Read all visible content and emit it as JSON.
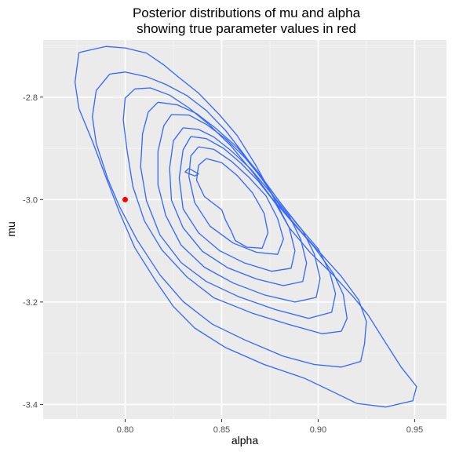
{
  "chart_data": {
    "type": "contour",
    "title": [
      "Posterior distributions of mu and alpha",
      "showing true parameter values in red"
    ],
    "xlabel": "alpha",
    "ylabel": "mu",
    "xlim": [
      0.7575,
      0.9665
    ],
    "ylim": [
      -3.4285,
      -2.6885
    ],
    "x_ticks": [
      0.8,
      0.85,
      0.9,
      0.95
    ],
    "x_tick_labels": [
      "0.80",
      "0.85",
      "0.90",
      "0.95"
    ],
    "y_ticks": [
      -3.4,
      -3.2,
      -3.0,
      -2.8
    ],
    "y_tick_labels": [
      "-3.4",
      "-3.2",
      "-3.0",
      "-2.8"
    ],
    "grid": true,
    "contour_color": "#3366FF",
    "true_point": {
      "alpha": 0.8,
      "mu": -3.0,
      "color": "#FF0000"
    },
    "contours": [
      {
        "level": 1,
        "points": [
          [
            0.776,
            -2.713
          ],
          [
            0.79,
            -2.701
          ],
          [
            0.8,
            -2.704
          ],
          [
            0.811,
            -2.714
          ],
          [
            0.82,
            -2.737
          ],
          [
            0.828,
            -2.762
          ],
          [
            0.838,
            -2.792
          ],
          [
            0.849,
            -2.835
          ],
          [
            0.858,
            -2.875
          ],
          [
            0.868,
            -2.935
          ],
          [
            0.877,
            -2.997
          ],
          [
            0.885,
            -3.055
          ],
          [
            0.896,
            -3.104
          ],
          [
            0.908,
            -3.148
          ],
          [
            0.918,
            -3.189
          ],
          [
            0.926,
            -3.226
          ],
          [
            0.934,
            -3.274
          ],
          [
            0.943,
            -3.327
          ],
          [
            0.951,
            -3.365
          ],
          [
            0.949,
            -3.393
          ],
          [
            0.935,
            -3.405
          ],
          [
            0.92,
            -3.398
          ],
          [
            0.908,
            -3.376
          ],
          [
            0.893,
            -3.349
          ],
          [
            0.872,
            -3.322
          ],
          [
            0.852,
            -3.289
          ],
          [
            0.836,
            -3.251
          ],
          [
            0.825,
            -3.209
          ],
          [
            0.816,
            -3.16
          ],
          [
            0.805,
            -3.094
          ],
          [
            0.797,
            -3.024
          ],
          [
            0.79,
            -2.956
          ],
          [
            0.783,
            -2.886
          ],
          [
            0.776,
            -2.822
          ],
          [
            0.774,
            -2.771
          ],
          [
            0.776,
            -2.713
          ]
        ]
      },
      {
        "level": 2,
        "points": [
          [
            0.792,
            -2.755
          ],
          [
            0.8,
            -2.751
          ],
          [
            0.811,
            -2.76
          ],
          [
            0.821,
            -2.775
          ],
          [
            0.832,
            -2.797
          ],
          [
            0.842,
            -2.826
          ],
          [
            0.852,
            -2.865
          ],
          [
            0.862,
            -2.914
          ],
          [
            0.872,
            -2.966
          ],
          [
            0.881,
            -3.017
          ],
          [
            0.891,
            -3.062
          ],
          [
            0.901,
            -3.104
          ],
          [
            0.912,
            -3.15
          ],
          [
            0.921,
            -3.196
          ],
          [
            0.925,
            -3.238
          ],
          [
            0.924,
            -3.282
          ],
          [
            0.922,
            -3.316
          ],
          [
            0.912,
            -3.327
          ],
          [
            0.898,
            -3.322
          ],
          [
            0.882,
            -3.306
          ],
          [
            0.862,
            -3.274
          ],
          [
            0.845,
            -3.243
          ],
          [
            0.83,
            -3.199
          ],
          [
            0.818,
            -3.147
          ],
          [
            0.806,
            -3.078
          ],
          [
            0.797,
            -3.013
          ],
          [
            0.791,
            -2.96
          ],
          [
            0.785,
            -2.89
          ],
          [
            0.783,
            -2.838
          ],
          [
            0.785,
            -2.787
          ],
          [
            0.792,
            -2.755
          ]
        ]
      },
      {
        "level": 3,
        "points": [
          [
            0.805,
            -2.784
          ],
          [
            0.813,
            -2.782
          ],
          [
            0.823,
            -2.796
          ],
          [
            0.833,
            -2.821
          ],
          [
            0.843,
            -2.852
          ],
          [
            0.855,
            -2.896
          ],
          [
            0.866,
            -2.946
          ],
          [
            0.876,
            -2.997
          ],
          [
            0.887,
            -3.046
          ],
          [
            0.898,
            -3.093
          ],
          [
            0.908,
            -3.145
          ],
          [
            0.913,
            -3.185
          ],
          [
            0.915,
            -3.232
          ],
          [
            0.912,
            -3.257
          ],
          [
            0.902,
            -3.262
          ],
          [
            0.885,
            -3.244
          ],
          [
            0.866,
            -3.222
          ],
          [
            0.846,
            -3.192
          ],
          [
            0.832,
            -3.151
          ],
          [
            0.819,
            -3.098
          ],
          [
            0.81,
            -3.042
          ],
          [
            0.804,
            -2.975
          ],
          [
            0.801,
            -2.905
          ],
          [
            0.799,
            -2.845
          ],
          [
            0.8,
            -2.802
          ],
          [
            0.805,
            -2.784
          ]
        ]
      },
      {
        "level": 4,
        "points": [
          [
            0.817,
            -2.81
          ],
          [
            0.827,
            -2.815
          ],
          [
            0.837,
            -2.832
          ],
          [
            0.847,
            -2.861
          ],
          [
            0.858,
            -2.898
          ],
          [
            0.869,
            -2.947
          ],
          [
            0.879,
            -2.999
          ],
          [
            0.889,
            -3.048
          ],
          [
            0.9,
            -3.096
          ],
          [
            0.906,
            -3.142
          ],
          [
            0.909,
            -3.184
          ],
          [
            0.907,
            -3.22
          ],
          [
            0.895,
            -3.232
          ],
          [
            0.878,
            -3.215
          ],
          [
            0.859,
            -3.19
          ],
          [
            0.842,
            -3.16
          ],
          [
            0.829,
            -3.123
          ],
          [
            0.818,
            -3.069
          ],
          [
            0.811,
            -3.002
          ],
          [
            0.808,
            -2.936
          ],
          [
            0.809,
            -2.871
          ],
          [
            0.812,
            -2.829
          ],
          [
            0.817,
            -2.81
          ]
        ]
      },
      {
        "level": 5,
        "points": [
          [
            0.824,
            -2.834
          ],
          [
            0.833,
            -2.835
          ],
          [
            0.842,
            -2.853
          ],
          [
            0.852,
            -2.881
          ],
          [
            0.862,
            -2.918
          ],
          [
            0.872,
            -2.964
          ],
          [
            0.882,
            -3.014
          ],
          [
            0.892,
            -3.061
          ],
          [
            0.898,
            -3.106
          ],
          [
            0.901,
            -3.154
          ],
          [
            0.899,
            -3.191
          ],
          [
            0.888,
            -3.2
          ],
          [
            0.872,
            -3.186
          ],
          [
            0.856,
            -3.163
          ],
          [
            0.841,
            -3.132
          ],
          [
            0.829,
            -3.089
          ],
          [
            0.821,
            -3.031
          ],
          [
            0.817,
            -2.971
          ],
          [
            0.817,
            -2.906
          ],
          [
            0.82,
            -2.856
          ],
          [
            0.824,
            -2.834
          ]
        ]
      },
      {
        "level": 6,
        "points": [
          [
            0.83,
            -2.86
          ],
          [
            0.838,
            -2.863
          ],
          [
            0.846,
            -2.878
          ],
          [
            0.855,
            -2.905
          ],
          [
            0.865,
            -2.94
          ],
          [
            0.875,
            -2.985
          ],
          [
            0.885,
            -3.032
          ],
          [
            0.891,
            -3.078
          ],
          [
            0.894,
            -3.124
          ],
          [
            0.892,
            -3.16
          ],
          [
            0.882,
            -3.168
          ],
          [
            0.868,
            -3.155
          ],
          [
            0.853,
            -3.133
          ],
          [
            0.84,
            -3.101
          ],
          [
            0.83,
            -3.055
          ],
          [
            0.824,
            -3.001
          ],
          [
            0.823,
            -2.939
          ],
          [
            0.825,
            -2.885
          ],
          [
            0.83,
            -2.86
          ]
        ]
      },
      {
        "level": 7,
        "points": [
          [
            0.834,
            -2.877
          ],
          [
            0.842,
            -2.881
          ],
          [
            0.851,
            -2.9
          ],
          [
            0.86,
            -2.929
          ],
          [
            0.869,
            -2.964
          ],
          [
            0.878,
            -3.008
          ],
          [
            0.885,
            -3.055
          ],
          [
            0.888,
            -3.1
          ],
          [
            0.886,
            -3.134
          ],
          [
            0.876,
            -3.14
          ],
          [
            0.862,
            -3.124
          ],
          [
            0.849,
            -3.1
          ],
          [
            0.838,
            -3.065
          ],
          [
            0.83,
            -3.018
          ],
          [
            0.828,
            -2.958
          ],
          [
            0.83,
            -2.903
          ],
          [
            0.834,
            -2.877
          ]
        ]
      },
      {
        "level": 8,
        "points": [
          [
            0.838,
            -2.897
          ],
          [
            0.846,
            -2.902
          ],
          [
            0.855,
            -2.925
          ],
          [
            0.864,
            -2.956
          ],
          [
            0.873,
            -2.993
          ],
          [
            0.879,
            -3.037
          ],
          [
            0.882,
            -3.077
          ],
          [
            0.879,
            -3.107
          ],
          [
            0.868,
            -3.103
          ],
          [
            0.856,
            -3.085
          ],
          [
            0.844,
            -3.052
          ],
          [
            0.836,
            -3.006
          ],
          [
            0.833,
            -2.955
          ],
          [
            0.834,
            -2.915
          ],
          [
            0.838,
            -2.897
          ]
        ]
      },
      {
        "level": 9,
        "points": [
          [
            0.842,
            -2.92
          ],
          [
            0.85,
            -2.928
          ],
          [
            0.858,
            -2.953
          ],
          [
            0.866,
            -2.987
          ],
          [
            0.872,
            -3.027
          ],
          [
            0.874,
            -3.065
          ],
          [
            0.871,
            -3.095
          ],
          [
            0.863,
            -3.093
          ],
          [
            0.857,
            -3.08
          ],
          [
            0.855,
            -3.062
          ],
          [
            0.852,
            -3.04
          ],
          [
            0.85,
            -3.02
          ],
          [
            0.841,
            -2.994
          ],
          [
            0.837,
            -2.962
          ],
          [
            0.838,
            -2.933
          ],
          [
            0.842,
            -2.92
          ]
        ]
      },
      {
        "level": 10,
        "points": [
          [
            0.833,
            -2.939
          ],
          [
            0.838,
            -2.95
          ],
          [
            0.836,
            -2.954
          ],
          [
            0.831,
            -2.946
          ],
          [
            0.833,
            -2.939
          ]
        ]
      }
    ]
  }
}
